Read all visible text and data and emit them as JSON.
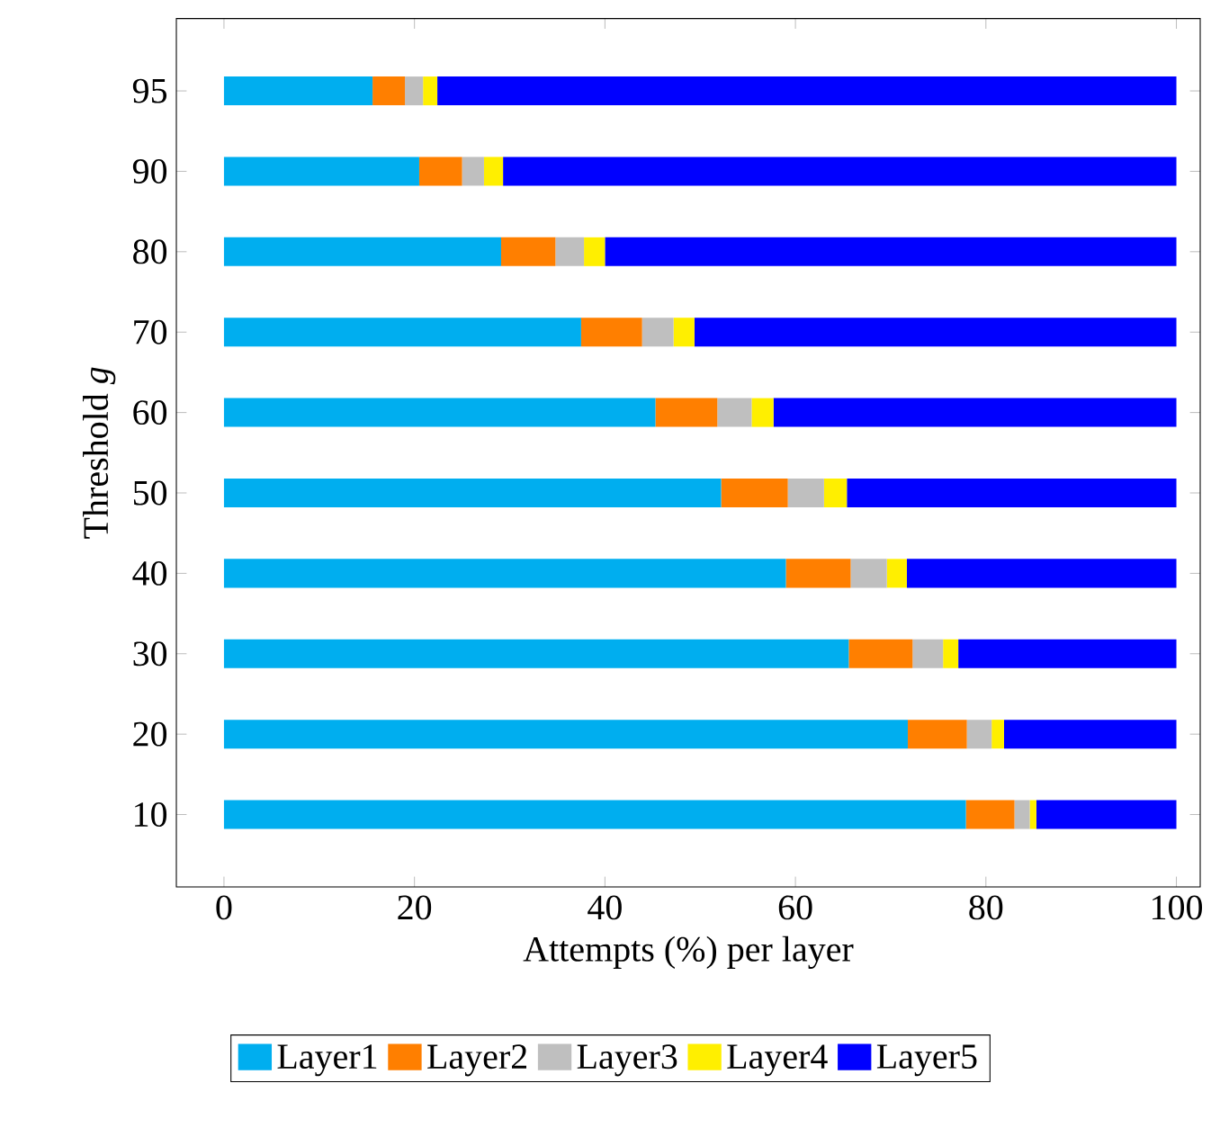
{
  "chart_data": {
    "type": "bar",
    "orientation": "horizontal",
    "stacked": true,
    "xlabel": "Attempts (%) per layer",
    "ylabel": "Threshold *g*",
    "categories": [
      "95",
      "90",
      "80",
      "70",
      "60",
      "50",
      "40",
      "30",
      "20",
      "10"
    ],
    "xlim": [
      -5,
      102.5
    ],
    "xticks": [
      0,
      20,
      40,
      60,
      80,
      100
    ],
    "grid": false,
    "legend": "bottom",
    "series": [
      {
        "name": "Layer1",
        "color": "#00aeef",
        "values": [
          15.6,
          20.5,
          29.1,
          37.5,
          45.3,
          52.2,
          59.0,
          65.6,
          71.8,
          77.9
        ]
      },
      {
        "name": "Layer2",
        "color": "#ff7f00",
        "values": [
          3.4,
          4.5,
          5.7,
          6.4,
          6.5,
          7.0,
          6.8,
          6.7,
          6.2,
          5.1
        ]
      },
      {
        "name": "Layer3",
        "color": "#bfbfbf",
        "values": [
          1.9,
          2.3,
          3.0,
          3.3,
          3.6,
          3.8,
          3.8,
          3.2,
          2.6,
          1.6
        ]
      },
      {
        "name": "Layer4",
        "color": "#ffef00",
        "values": [
          1.5,
          2.0,
          2.2,
          2.2,
          2.3,
          2.4,
          2.1,
          1.6,
          1.3,
          0.7
        ]
      },
      {
        "name": "Layer5",
        "color": "#0000ff",
        "values": [
          77.6,
          70.7,
          60.0,
          50.6,
          42.3,
          34.6,
          28.3,
          22.9,
          18.1,
          14.7
        ]
      }
    ]
  }
}
